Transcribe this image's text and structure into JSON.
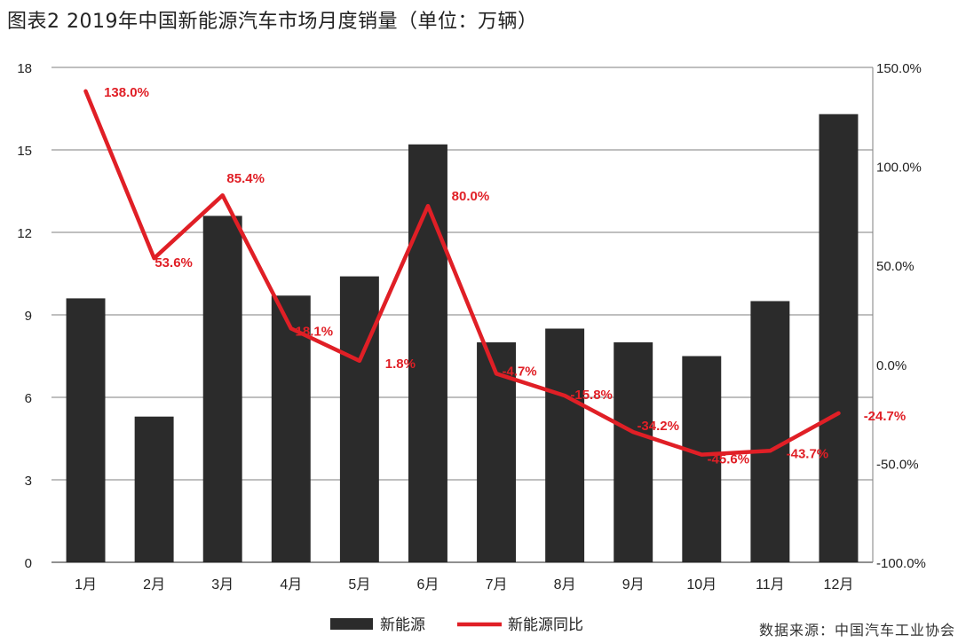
{
  "title": "图表2  2019年中国新能源汽车市场月度销量（单位：万辆）",
  "source": "数据来源：中国汽车工业协会",
  "colors": {
    "bar": "#2b2b2b",
    "line": "#e01f26",
    "label": "#e01f26",
    "grid": "#7f7f7f",
    "axis": "#222222"
  },
  "chart_data": {
    "type": "bar",
    "categories": [
      "1月",
      "2月",
      "3月",
      "4月",
      "5月",
      "6月",
      "7月",
      "8月",
      "9月",
      "10月",
      "11月",
      "12月"
    ],
    "series": [
      {
        "name": "新能源",
        "type": "bar",
        "axis": "left",
        "values": [
          9.6,
          5.3,
          12.6,
          9.7,
          10.4,
          15.2,
          8.0,
          8.5,
          8.0,
          7.5,
          9.5,
          16.3
        ]
      },
      {
        "name": "新能源同比",
        "type": "line",
        "axis": "right",
        "values": [
          138.0,
          53.6,
          85.4,
          18.1,
          1.8,
          80.0,
          -4.7,
          -15.8,
          -34.2,
          -45.6,
          -43.7,
          -24.7
        ],
        "labels": [
          "138.0%",
          "53.6%",
          "85.4%",
          "18.1%",
          "1.8%",
          "80.0%",
          "-4.7%",
          "-15.8%",
          "-34.2%",
          "-45.6%",
          "-43.7%",
          "-24.7%"
        ]
      }
    ],
    "y_left": {
      "min": 0,
      "max": 18,
      "ticks": [
        "0",
        "3",
        "6",
        "9",
        "12",
        "15",
        "18"
      ]
    },
    "y_right": {
      "min": -100,
      "max": 150,
      "ticks": [
        "-100.0%",
        "-50.0%",
        "0.0%",
        "50.0%",
        "100.0%",
        "150.0%"
      ]
    },
    "grid": true,
    "legend": {
      "position": "bottom"
    }
  }
}
